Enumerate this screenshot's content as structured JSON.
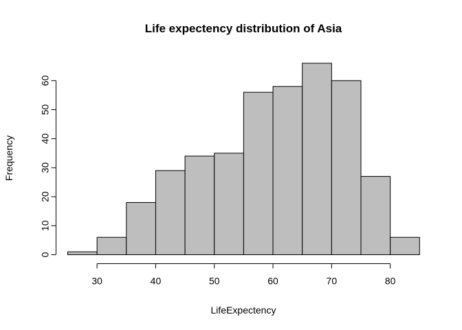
{
  "chart_data": {
    "type": "bar",
    "title": "Life expectency distribution of Asia",
    "xlabel": "LifeExpectency",
    "ylabel": "Frequency",
    "bins": [
      {
        "from": 25,
        "to": 30,
        "count": 1
      },
      {
        "from": 30,
        "to": 35,
        "count": 6
      },
      {
        "from": 35,
        "to": 40,
        "count": 18
      },
      {
        "from": 40,
        "to": 45,
        "count": 29
      },
      {
        "from": 45,
        "to": 50,
        "count": 34
      },
      {
        "from": 50,
        "to": 55,
        "count": 35
      },
      {
        "from": 55,
        "to": 60,
        "count": 56
      },
      {
        "from": 60,
        "to": 65,
        "count": 58
      },
      {
        "from": 65,
        "to": 70,
        "count": 66
      },
      {
        "from": 70,
        "to": 75,
        "count": 60
      },
      {
        "from": 75,
        "to": 80,
        "count": 27
      },
      {
        "from": 80,
        "to": 85,
        "count": 6
      }
    ],
    "xticks": [
      30,
      40,
      50,
      60,
      70,
      80
    ],
    "yticks": [
      0,
      10,
      20,
      30,
      40,
      50,
      60
    ],
    "xlim": [
      25,
      85
    ],
    "ylim": [
      0,
      66
    ],
    "bar_fill": "#bebebe",
    "bar_stroke": "#000000",
    "grid": false,
    "legend": "none"
  }
}
